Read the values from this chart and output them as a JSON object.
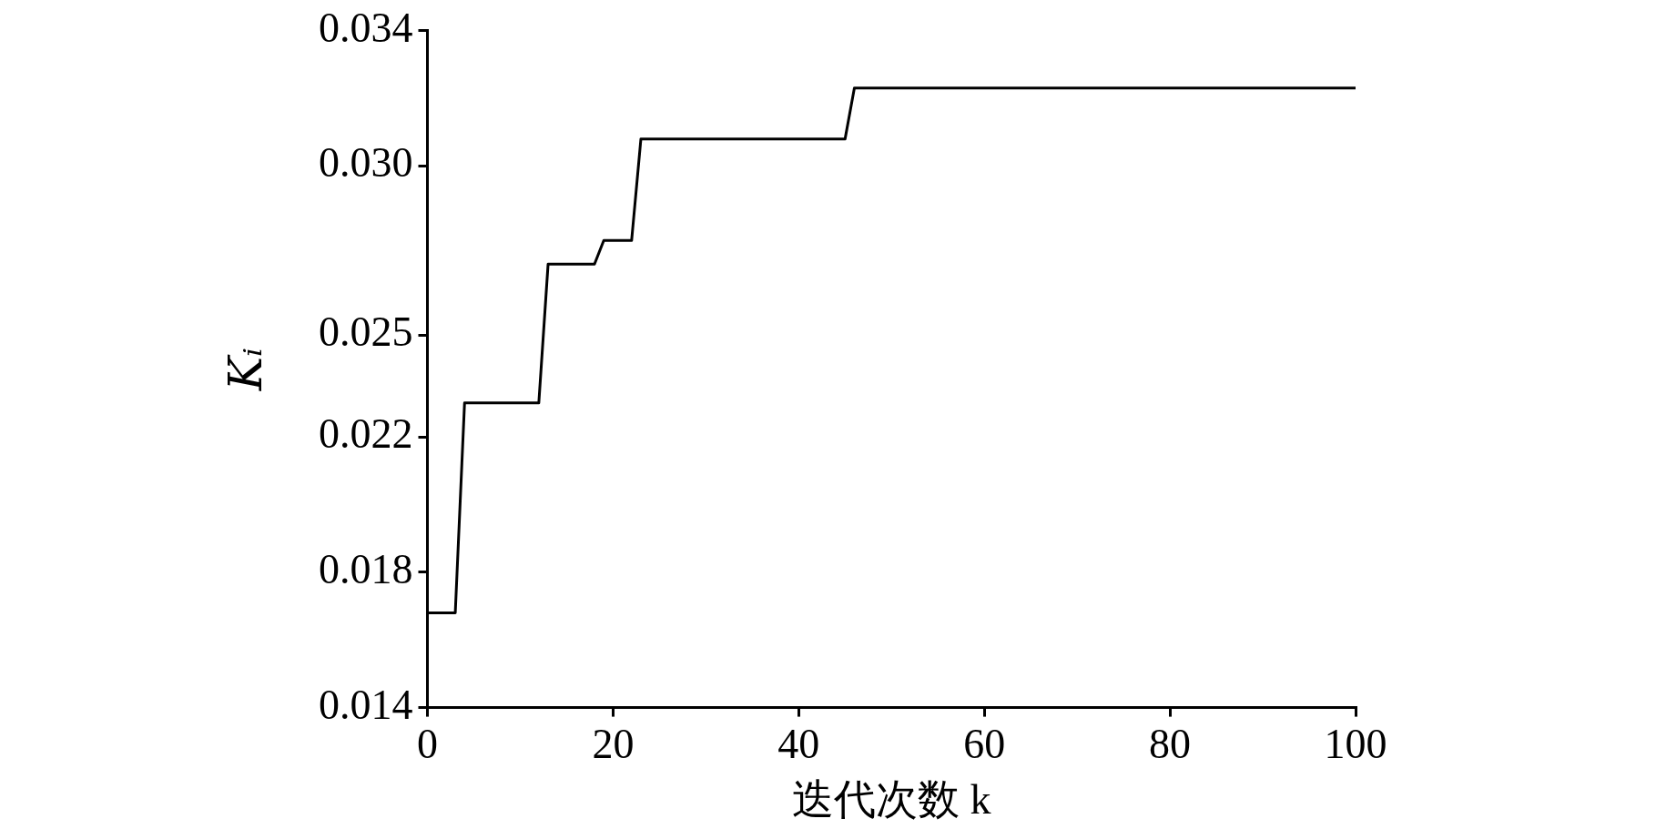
{
  "chart_data": {
    "type": "line",
    "xlabel": "迭代次数 k",
    "ylabel": "Kᵢ",
    "xlim": [
      0,
      100
    ],
    "ylim": [
      0.014,
      0.034
    ],
    "xticks": [
      0,
      20,
      40,
      60,
      80,
      100
    ],
    "yticks": [
      0.014,
      0.018,
      0.022,
      0.025,
      {
        "value": 0.03,
        "label": "0.030"
      },
      0.034
    ],
    "marker": "none",
    "line_style": "solid",
    "series": [
      {
        "color": "#000000",
        "x": [
          0,
          3,
          4,
          12,
          13,
          18,
          19,
          22,
          23,
          45,
          46,
          100
        ],
        "values": [
          0.0168,
          0.0168,
          0.023,
          0.023,
          0.0271,
          0.0271,
          0.0278,
          0.0278,
          0.0308,
          0.0308,
          0.0323,
          0.0323
        ]
      }
    ]
  }
}
